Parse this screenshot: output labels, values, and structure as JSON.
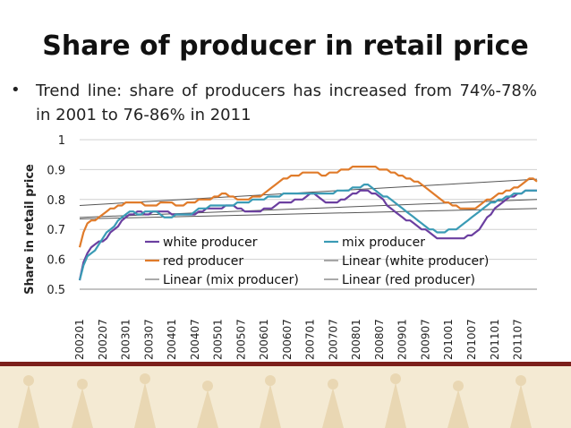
{
  "slide": {
    "title": "Share of producer in retail price",
    "bullet": "Trend line: share of producers has increased from 74%-78% in 2001 to 76-86% in 2011"
  },
  "chart_data": {
    "type": "line",
    "title": "",
    "xlabel": "",
    "ylabel": "Share in retail price",
    "ylim": [
      0.5,
      1.0
    ],
    "y_ticks": [
      "0.5",
      "0.6",
      "0.7",
      "0.8",
      "0.9",
      "1"
    ],
    "x_ticks": [
      "200201",
      "200207",
      "200301",
      "200307",
      "200401",
      "200407",
      "200501",
      "200507",
      "200601",
      "200607",
      "200701",
      "200707",
      "200801",
      "200807",
      "200901",
      "200907",
      "201001",
      "201007",
      "201101",
      "201107"
    ],
    "months": 120,
    "grid": true,
    "legend": "inside-center",
    "series": [
      {
        "name": "white producer",
        "color": "#6b3fa0",
        "values": [
          0.53,
          0.59,
          0.62,
          0.64,
          0.65,
          0.66,
          0.66,
          0.67,
          0.69,
          0.7,
          0.71,
          0.73,
          0.74,
          0.75,
          0.75,
          0.76,
          0.76,
          0.75,
          0.75,
          0.76,
          0.76,
          0.76,
          0.76,
          0.76,
          0.75,
          0.75,
          0.75,
          0.75,
          0.75,
          0.75,
          0.75,
          0.76,
          0.76,
          0.77,
          0.77,
          0.77,
          0.77,
          0.77,
          0.78,
          0.78,
          0.78,
          0.77,
          0.77,
          0.76,
          0.76,
          0.76,
          0.76,
          0.76,
          0.77,
          0.77,
          0.77,
          0.78,
          0.79,
          0.79,
          0.79,
          0.79,
          0.8,
          0.8,
          0.8,
          0.81,
          0.82,
          0.82,
          0.81,
          0.8,
          0.79,
          0.79,
          0.79,
          0.79,
          0.8,
          0.8,
          0.81,
          0.82,
          0.82,
          0.83,
          0.83,
          0.83,
          0.82,
          0.82,
          0.81,
          0.8,
          0.78,
          0.77,
          0.76,
          0.75,
          0.74,
          0.73,
          0.73,
          0.72,
          0.71,
          0.7,
          0.7,
          0.69,
          0.68,
          0.67,
          0.67,
          0.67,
          0.67,
          0.67,
          0.67,
          0.67,
          0.67,
          0.68,
          0.68,
          0.69,
          0.7,
          0.72,
          0.74,
          0.75,
          0.77,
          0.78,
          0.79,
          0.8,
          0.81,
          0.81,
          0.82,
          0.82,
          0.83,
          0.83,
          0.83,
          0.83
        ]
      },
      {
        "name": "mix producer",
        "color": "#3a9bb5",
        "values": [
          0.53,
          0.58,
          0.61,
          0.62,
          0.63,
          0.65,
          0.67,
          0.69,
          0.7,
          0.71,
          0.73,
          0.74,
          0.75,
          0.76,
          0.76,
          0.75,
          0.75,
          0.76,
          0.76,
          0.76,
          0.76,
          0.75,
          0.74,
          0.74,
          0.74,
          0.75,
          0.75,
          0.75,
          0.75,
          0.75,
          0.76,
          0.77,
          0.77,
          0.77,
          0.78,
          0.78,
          0.78,
          0.78,
          0.78,
          0.78,
          0.78,
          0.79,
          0.79,
          0.79,
          0.79,
          0.8,
          0.8,
          0.8,
          0.8,
          0.81,
          0.81,
          0.81,
          0.81,
          0.82,
          0.82,
          0.82,
          0.82,
          0.82,
          0.82,
          0.82,
          0.82,
          0.82,
          0.82,
          0.82,
          0.82,
          0.82,
          0.82,
          0.83,
          0.83,
          0.83,
          0.83,
          0.84,
          0.84,
          0.84,
          0.85,
          0.85,
          0.84,
          0.83,
          0.82,
          0.81,
          0.81,
          0.8,
          0.79,
          0.78,
          0.77,
          0.76,
          0.75,
          0.74,
          0.73,
          0.72,
          0.71,
          0.7,
          0.7,
          0.69,
          0.69,
          0.69,
          0.7,
          0.7,
          0.7,
          0.71,
          0.72,
          0.73,
          0.74,
          0.75,
          0.76,
          0.77,
          0.78,
          0.79,
          0.79,
          0.8,
          0.8,
          0.81,
          0.81,
          0.82,
          0.82,
          0.82,
          0.83,
          0.83,
          0.83,
          0.83
        ]
      },
      {
        "name": "red producer",
        "color": "#e07b2a",
        "values": [
          0.64,
          0.69,
          0.72,
          0.73,
          0.73,
          0.74,
          0.75,
          0.76,
          0.77,
          0.77,
          0.78,
          0.78,
          0.79,
          0.79,
          0.79,
          0.79,
          0.79,
          0.78,
          0.78,
          0.78,
          0.78,
          0.79,
          0.79,
          0.79,
          0.79,
          0.78,
          0.78,
          0.78,
          0.79,
          0.79,
          0.79,
          0.8,
          0.8,
          0.8,
          0.8,
          0.81,
          0.81,
          0.82,
          0.82,
          0.81,
          0.81,
          0.8,
          0.8,
          0.8,
          0.8,
          0.81,
          0.81,
          0.81,
          0.82,
          0.83,
          0.84,
          0.85,
          0.86,
          0.87,
          0.87,
          0.88,
          0.88,
          0.88,
          0.89,
          0.89,
          0.89,
          0.89,
          0.89,
          0.88,
          0.88,
          0.89,
          0.89,
          0.89,
          0.9,
          0.9,
          0.9,
          0.91,
          0.91,
          0.91,
          0.91,
          0.91,
          0.91,
          0.91,
          0.9,
          0.9,
          0.9,
          0.89,
          0.89,
          0.88,
          0.88,
          0.87,
          0.87,
          0.86,
          0.86,
          0.85,
          0.84,
          0.83,
          0.82,
          0.81,
          0.8,
          0.79,
          0.79,
          0.78,
          0.78,
          0.77,
          0.77,
          0.77,
          0.77,
          0.77,
          0.78,
          0.79,
          0.8,
          0.8,
          0.81,
          0.82,
          0.82,
          0.83,
          0.83,
          0.84,
          0.84,
          0.85,
          0.86,
          0.87,
          0.87,
          0.86
        ]
      },
      {
        "name": "Linear (white producer)",
        "color": "#555555",
        "values": [
          0.735,
          0.77
        ]
      },
      {
        "name": "Linear (mix producer)",
        "color": "#555555",
        "values": [
          0.74,
          0.8
        ]
      },
      {
        "name": "Linear (red producer)",
        "color": "#555555",
        "values": [
          0.78,
          0.868
        ]
      }
    ]
  }
}
